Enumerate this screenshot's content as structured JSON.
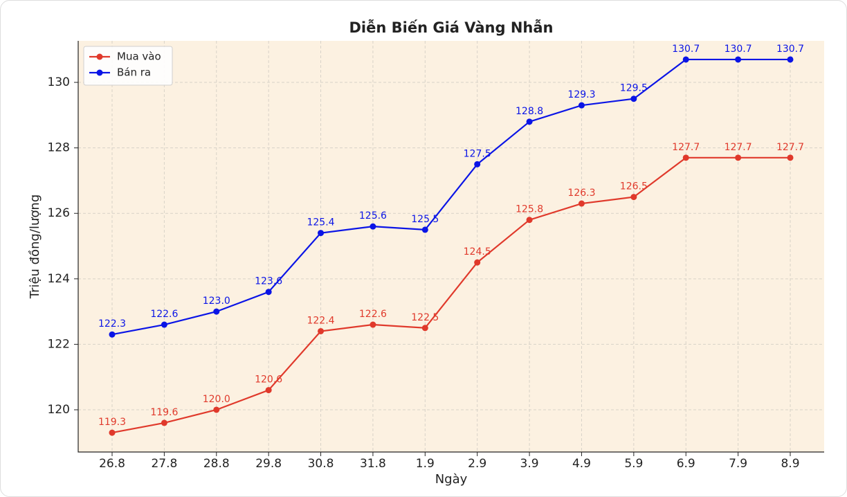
{
  "chart_data": {
    "type": "line",
    "title": "Diễn Biến Giá Vàng Nhẫn",
    "x_label": "Ngày",
    "y_label": "Triệu đồng/lượng",
    "categories": [
      "26.8",
      "27.8",
      "28.8",
      "29.8",
      "30.8",
      "31.8",
      "1.9",
      "2.9",
      "3.9",
      "4.9",
      "5.9",
      "6.9",
      "7.9",
      "8.9"
    ],
    "series": [
      {
        "name": "Mua vào",
        "color": "#e0392b",
        "values": [
          119.3,
          119.6,
          120.0,
          120.6,
          122.4,
          122.6,
          122.5,
          124.5,
          125.8,
          126.3,
          126.5,
          127.7,
          127.7,
          127.7
        ],
        "value_labels": [
          "119.3",
          "119.6",
          "120.0",
          "120.6",
          "122.4",
          "122.6",
          "122.5",
          "124.5",
          "125.8",
          "126.3",
          "126.5",
          "127.7",
          "127.7",
          "127.7"
        ]
      },
      {
        "name": "Bán ra",
        "color": "#0a14e6",
        "values": [
          122.3,
          122.6,
          123.0,
          123.6,
          125.4,
          125.6,
          125.5,
          127.5,
          128.8,
          129.3,
          129.5,
          130.7,
          130.7,
          130.7
        ],
        "value_labels": [
          "122.3",
          "122.6",
          "123.0",
          "123.6",
          "125.4",
          "125.6",
          "125.5",
          "127.5",
          "128.8",
          "129.3",
          "129.5",
          "130.7",
          "130.7",
          "130.7"
        ]
      }
    ],
    "ylim": [
      118.71,
      131.27
    ],
    "yticks": [
      120,
      122,
      124,
      126,
      128,
      130
    ],
    "grid": true,
    "legend": "upper left"
  }
}
